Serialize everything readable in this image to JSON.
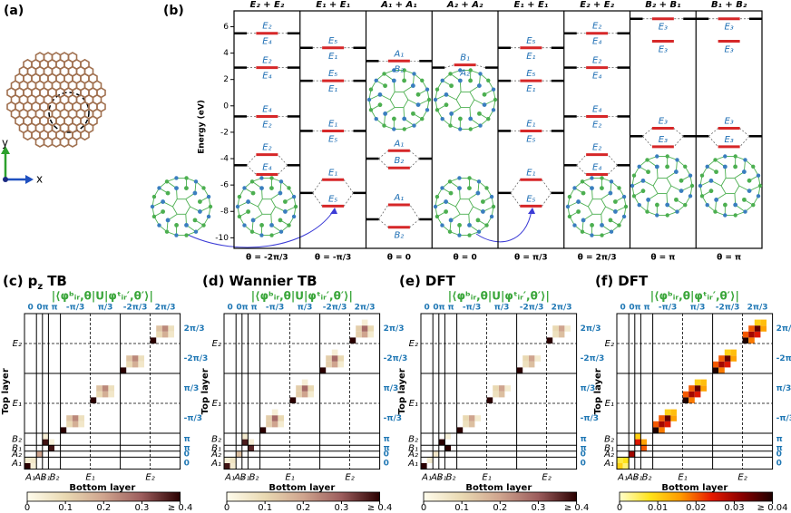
{
  "panel_a": {
    "label": "(a)",
    "axis_y": "y",
    "axis_x": "x"
  },
  "panel_b": {
    "label": "(b)",
    "y_axis_label": "Energy (eV)",
    "ylim": [
      -10.8,
      7.2
    ],
    "yticks": [
      -10,
      -8,
      -6,
      -4,
      -2,
      0,
      2,
      4,
      6
    ],
    "columns": [
      {
        "title": "E₂ + E₂",
        "theta": "θ = -2π/3",
        "levels": [
          {
            "energy": 5.5,
            "upper": "E₂",
            "lower": "E₄"
          },
          {
            "energy": 2.9,
            "upper": "E₂",
            "lower": "E₄"
          },
          {
            "energy": -0.8,
            "upper": "E₄",
            "lower": "E₂"
          },
          {
            "energy": -3.7,
            "upper": "E₂"
          },
          {
            "energy": -5.2,
            "upper": "E₄"
          }
        ],
        "monomer": [
          5.5,
          2.9,
          -0.8,
          -4.5
        ]
      },
      {
        "title": "E₁ + E₁",
        "theta": "θ = -π/3",
        "levels": [
          {
            "energy": 4.4,
            "upper": "E₅",
            "lower": "E₁"
          },
          {
            "energy": 1.9,
            "upper": "E₅",
            "lower": "E₁"
          },
          {
            "energy": -1.9,
            "upper": "E₁",
            "lower": "E₅"
          },
          {
            "energy": -5.6,
            "upper": "E₁"
          },
          {
            "energy": -7.6,
            "upper": "E₅"
          }
        ],
        "monomer": [
          4.4,
          1.9,
          -1.9,
          -6.6
        ]
      },
      {
        "title": "A₁ + A₁",
        "theta": "θ = 0",
        "levels": [
          {
            "energy": 3.4,
            "upper": "A₁",
            "lower": "B₂"
          },
          {
            "energy": -3.4,
            "upper": "A₁"
          },
          {
            "energy": -4.7,
            "upper": "B₂"
          },
          {
            "energy": -7.5,
            "upper": "A₁"
          },
          {
            "energy": -9.2,
            "lower": "B₂"
          }
        ],
        "monomer": [
          3.4,
          -4.0,
          -8.6
        ]
      },
      {
        "title": "A₂ + A₂",
        "theta": "θ = 0",
        "levels": [
          {
            "energy": 3.1,
            "upper": "B₁",
            "lower": "A₂"
          }
        ],
        "monomer": [
          2.9
        ]
      },
      {
        "title": "E₁ + E₁",
        "theta": "θ = π/3",
        "levels": [
          {
            "energy": 4.4,
            "upper": "E₅",
            "lower": "E₁"
          },
          {
            "energy": 1.9,
            "upper": "E₅",
            "lower": "E₁"
          },
          {
            "energy": -1.9,
            "upper": "E₁",
            "lower": "E₅"
          },
          {
            "energy": -5.6,
            "upper": "E₁"
          },
          {
            "energy": -7.6,
            "upper": "E₅"
          }
        ],
        "monomer": [
          4.4,
          1.9,
          -1.9,
          -6.6
        ]
      },
      {
        "title": "E₂ + E₂",
        "theta": "θ = 2π/3",
        "levels": [
          {
            "energy": 5.5,
            "upper": "E₂",
            "lower": "E₄"
          },
          {
            "energy": 2.9,
            "upper": "E₂",
            "lower": "E₄"
          },
          {
            "energy": -0.8,
            "upper": "E₄",
            "lower": "E₂"
          },
          {
            "energy": -3.7,
            "upper": "E₂"
          },
          {
            "energy": -5.2,
            "upper": "E₄"
          }
        ],
        "monomer": [
          5.5,
          2.9,
          -0.8,
          -4.5
        ]
      },
      {
        "title": "B₂ + B₁",
        "theta": "θ = π",
        "levels": [
          {
            "energy": 6.6,
            "lower": "E₃"
          },
          {
            "energy": 4.9,
            "lower": "E₃"
          },
          {
            "energy": -1.7,
            "upper": "E₃"
          },
          {
            "energy": -3.1,
            "upper": "E₃"
          }
        ],
        "monomer": [
          6.6,
          -2.3
        ]
      },
      {
        "title": "B₁ + B₂",
        "theta": "θ = π",
        "levels": [
          {
            "energy": 6.6,
            "lower": "E₃"
          },
          {
            "energy": 4.9,
            "lower": "E₃"
          },
          {
            "energy": -1.7,
            "upper": "E₃"
          },
          {
            "energy": -3.1,
            "upper": "E₃"
          }
        ],
        "monomer": [
          6.6,
          -2.3
        ]
      }
    ]
  },
  "matrices": [
    {
      "label": "(c)",
      "title": "p",
      "title_sub": "z",
      "title_end": "TB",
      "formula": "|⟨φᵇᵢᵣ,θ|U|φᵗᵢᵣ′,θ′⟩|",
      "block_labels": [
        "0",
        "0",
        "π",
        "π",
        "-π/3",
        "π/3",
        "-2π/3",
        "2π/3"
      ],
      "block_sizes": [
        2,
        1,
        1,
        2,
        5,
        5,
        5,
        5
      ],
      "irreps": [
        "A₁",
        "A₂",
        "B₁",
        "B₂",
        "E₁",
        "E₂"
      ],
      "irrep_sizes": [
        2,
        1,
        1,
        2,
        10,
        10
      ],
      "y_label": "Top layer",
      "x_label": "Bottom layer",
      "clim": [
        0,
        0.4
      ],
      "cticks": [
        0,
        0.1,
        0.2,
        0.3,
        {
          "value": 0.4,
          "label": "≥ 0.4"
        }
      ],
      "colormap": [
        "#fffcec",
        "#e9d9b2",
        "#cfa48e",
        "#9c5d5d",
        "#2a0000"
      ],
      "cells": [
        [
          0,
          0,
          0.4
        ],
        [
          0,
          1,
          0.04
        ],
        [
          1,
          0,
          0.05
        ],
        [
          1,
          1,
          0.06
        ],
        [
          2,
          2,
          0.2
        ],
        [
          3,
          4,
          0.38
        ],
        [
          4,
          3,
          0.38
        ],
        [
          5,
          3,
          0.04
        ],
        [
          4,
          4,
          0.03
        ],
        [
          6,
          6,
          0.4
        ],
        [
          7,
          7,
          0.1
        ],
        [
          7,
          8,
          0.18
        ],
        [
          8,
          7,
          0.14
        ],
        [
          8,
          8,
          0.24
        ],
        [
          8,
          9,
          0.08
        ],
        [
          7,
          9,
          0.06
        ],
        [
          11,
          11,
          0.4
        ],
        [
          12,
          12,
          0.1
        ],
        [
          12,
          13,
          0.18
        ],
        [
          13,
          12,
          0.14
        ],
        [
          13,
          13,
          0.24
        ],
        [
          13,
          14,
          0.08
        ],
        [
          12,
          14,
          0.06
        ],
        [
          16,
          16,
          0.4
        ],
        [
          17,
          17,
          0.1
        ],
        [
          17,
          18,
          0.18
        ],
        [
          18,
          17,
          0.14
        ],
        [
          18,
          18,
          0.24
        ],
        [
          18,
          19,
          0.08
        ],
        [
          17,
          19,
          0.06
        ],
        [
          21,
          21,
          0.4
        ],
        [
          22,
          22,
          0.1
        ],
        [
          22,
          23,
          0.18
        ],
        [
          23,
          22,
          0.14
        ],
        [
          23,
          23,
          0.24
        ],
        [
          23,
          24,
          0.08
        ],
        [
          22,
          24,
          0.06
        ]
      ]
    },
    {
      "label": "(d)",
      "title": "Wannier TB",
      "formula": "|⟨φᵇᵢᵣ,θ|U|φᵗᵢᵣ′,θ′⟩|",
      "block_labels": [
        "0",
        "0",
        "π",
        "π",
        "-π/3",
        "π/3",
        "-2π/3",
        "2π/3"
      ],
      "block_sizes": [
        2,
        1,
        1,
        2,
        5,
        5,
        5,
        5
      ],
      "irreps": [
        "A₁",
        "A₂",
        "B₁",
        "B₂",
        "E₁",
        "E₂"
      ],
      "irrep_sizes": [
        2,
        1,
        1,
        2,
        10,
        10
      ],
      "y_label": "Top layer",
      "x_label": "Bottom layer",
      "clim": [
        0,
        0.4
      ],
      "cticks": [
        0,
        0.1,
        0.2,
        0.3,
        {
          "value": 0.4,
          "label": "≥ 0.4"
        }
      ],
      "colormap": [
        "#fffcec",
        "#e9d9b2",
        "#cfa48e",
        "#9c5d5d",
        "#2a0000"
      ],
      "cells": [
        [
          0,
          0,
          0.38
        ],
        [
          0,
          1,
          0.05
        ],
        [
          1,
          0,
          0.04
        ],
        [
          1,
          1,
          0.07
        ],
        [
          2,
          2,
          0.15
        ],
        [
          3,
          4,
          0.36
        ],
        [
          4,
          3,
          0.37
        ],
        [
          5,
          3,
          0.05
        ],
        [
          4,
          4,
          0.04
        ],
        [
          6,
          6,
          0.4
        ],
        [
          7,
          7,
          0.12
        ],
        [
          7,
          8,
          0.2
        ],
        [
          8,
          7,
          0.12
        ],
        [
          8,
          8,
          0.28
        ],
        [
          8,
          9,
          0.1
        ],
        [
          7,
          9,
          0.05
        ],
        [
          9,
          8,
          0.04
        ],
        [
          11,
          11,
          0.4
        ],
        [
          12,
          12,
          0.12
        ],
        [
          12,
          13,
          0.2
        ],
        [
          13,
          12,
          0.12
        ],
        [
          13,
          13,
          0.28
        ],
        [
          13,
          14,
          0.1
        ],
        [
          12,
          14,
          0.05
        ],
        [
          14,
          13,
          0.04
        ],
        [
          16,
          16,
          0.4
        ],
        [
          17,
          17,
          0.12
        ],
        [
          17,
          18,
          0.2
        ],
        [
          18,
          17,
          0.12
        ],
        [
          18,
          18,
          0.28
        ],
        [
          18,
          19,
          0.1
        ],
        [
          17,
          19,
          0.05
        ],
        [
          19,
          18,
          0.04
        ],
        [
          21,
          21,
          0.4
        ],
        [
          22,
          22,
          0.12
        ],
        [
          22,
          23,
          0.2
        ],
        [
          23,
          22,
          0.12
        ],
        [
          23,
          23,
          0.28
        ],
        [
          23,
          24,
          0.1
        ],
        [
          22,
          24,
          0.05
        ],
        [
          24,
          23,
          0.04
        ]
      ]
    },
    {
      "label": "(e)",
      "title": "DFT",
      "formula": "|⟨φᵇᵢᵣ,θ|U|φᵗᵢᵣ′,θ′⟩|",
      "block_labels": [
        "0",
        "0",
        "π",
        "π",
        "-π/3",
        "π/3",
        "-2π/3",
        "2π/3"
      ],
      "block_sizes": [
        2,
        1,
        1,
        2,
        5,
        5,
        5,
        5
      ],
      "irreps": [
        "A₁",
        "A₂",
        "B₁",
        "B₂",
        "E₁",
        "E₂"
      ],
      "irrep_sizes": [
        2,
        1,
        1,
        2,
        10,
        10
      ],
      "y_label": "Top layer",
      "x_label": "Bottom layer",
      "clim": [
        0,
        0.4
      ],
      "cticks": [
        0,
        0.1,
        0.2,
        0.3,
        {
          "value": 0.4,
          "label": "≥ 0.4"
        }
      ],
      "colormap": [
        "#fffcec",
        "#e9d9b2",
        "#cfa48e",
        "#9c5d5d",
        "#2a0000"
      ],
      "cells": [
        [
          0,
          0,
          0.4
        ],
        [
          1,
          1,
          0.05
        ],
        [
          2,
          2,
          0.06
        ],
        [
          3,
          4,
          0.4
        ],
        [
          4,
          3,
          0.4
        ],
        [
          5,
          4,
          0.03
        ],
        [
          6,
          6,
          0.4
        ],
        [
          7,
          7,
          0.08
        ],
        [
          7,
          8,
          0.15
        ],
        [
          8,
          8,
          0.2
        ],
        [
          8,
          7,
          0.1
        ],
        [
          8,
          9,
          0.05
        ],
        [
          11,
          11,
          0.4
        ],
        [
          12,
          12,
          0.08
        ],
        [
          12,
          13,
          0.15
        ],
        [
          13,
          13,
          0.2
        ],
        [
          13,
          12,
          0.1
        ],
        [
          13,
          14,
          0.05
        ],
        [
          16,
          16,
          0.4
        ],
        [
          17,
          17,
          0.08
        ],
        [
          17,
          18,
          0.15
        ],
        [
          18,
          18,
          0.2
        ],
        [
          18,
          17,
          0.1
        ],
        [
          18,
          19,
          0.05
        ],
        [
          21,
          21,
          0.4
        ],
        [
          22,
          22,
          0.08
        ],
        [
          22,
          23,
          0.15
        ],
        [
          23,
          23,
          0.2
        ],
        [
          23,
          22,
          0.1
        ],
        [
          23,
          24,
          0.05
        ]
      ]
    },
    {
      "label": "(f)",
      "title": "DFT",
      "formula": "|⟨φᵇᵢᵣ,θ|φᵗᵢᵣ′,θ′⟩|",
      "block_labels": [
        "0",
        "0",
        "π",
        "π",
        "-π/3",
        "π/3",
        "-2π/3",
        "2π/3"
      ],
      "block_sizes": [
        2,
        1,
        1,
        2,
        5,
        5,
        5,
        5
      ],
      "irreps": [
        "A₁",
        "A₂",
        "B₁",
        "B₂",
        "E₁",
        "E₂"
      ],
      "irrep_sizes": [
        2,
        1,
        1,
        2,
        10,
        10
      ],
      "y_label": "Top layer",
      "x_label": "Bottom layer",
      "clim": [
        0,
        0.04
      ],
      "cticks": [
        0,
        0.01,
        0.02,
        0.03,
        {
          "value": 0.04,
          "label": "≥ 0.04"
        }
      ],
      "colormap": [
        "#ffffcc",
        "#ffe21a",
        "#ff9a00",
        "#e81a00",
        "#8a0000",
        "#1e0000"
      ],
      "cells": [
        [
          0,
          0,
          0.01
        ],
        [
          0,
          1,
          0.004
        ],
        [
          1,
          1,
          0.008
        ],
        [
          1,
          0,
          0.006
        ],
        [
          2,
          2,
          0.03
        ],
        [
          3,
          4,
          0.02
        ],
        [
          4,
          3,
          0.025
        ],
        [
          4,
          4,
          0.015
        ],
        [
          5,
          3,
          0.01
        ],
        [
          6,
          6,
          0.04
        ],
        [
          7,
          6,
          0.02
        ],
        [
          7,
          7,
          0.03
        ],
        [
          7,
          8,
          0.025
        ],
        [
          8,
          7,
          0.02
        ],
        [
          8,
          8,
          0.035
        ],
        [
          8,
          9,
          0.015
        ],
        [
          9,
          8,
          0.01
        ],
        [
          9,
          9,
          0.012
        ],
        [
          6,
          7,
          0.018
        ],
        [
          11,
          11,
          0.04
        ],
        [
          12,
          11,
          0.02
        ],
        [
          12,
          12,
          0.03
        ],
        [
          12,
          13,
          0.025
        ],
        [
          13,
          12,
          0.02
        ],
        [
          13,
          13,
          0.035
        ],
        [
          13,
          14,
          0.015
        ],
        [
          14,
          13,
          0.01
        ],
        [
          14,
          14,
          0.012
        ],
        [
          11,
          12,
          0.018
        ],
        [
          16,
          16,
          0.04
        ],
        [
          17,
          16,
          0.02
        ],
        [
          17,
          17,
          0.03
        ],
        [
          17,
          18,
          0.025
        ],
        [
          18,
          17,
          0.02
        ],
        [
          18,
          18,
          0.035
        ],
        [
          18,
          19,
          0.015
        ],
        [
          19,
          18,
          0.01
        ],
        [
          19,
          19,
          0.012
        ],
        [
          16,
          17,
          0.018
        ],
        [
          21,
          21,
          0.04
        ],
        [
          22,
          21,
          0.02
        ],
        [
          22,
          22,
          0.03
        ],
        [
          22,
          23,
          0.025
        ],
        [
          23,
          22,
          0.02
        ],
        [
          23,
          23,
          0.035
        ],
        [
          23,
          24,
          0.015
        ],
        [
          24,
          23,
          0.01
        ],
        [
          24,
          24,
          0.012
        ],
        [
          21,
          22,
          0.018
        ]
      ]
    }
  ]
}
